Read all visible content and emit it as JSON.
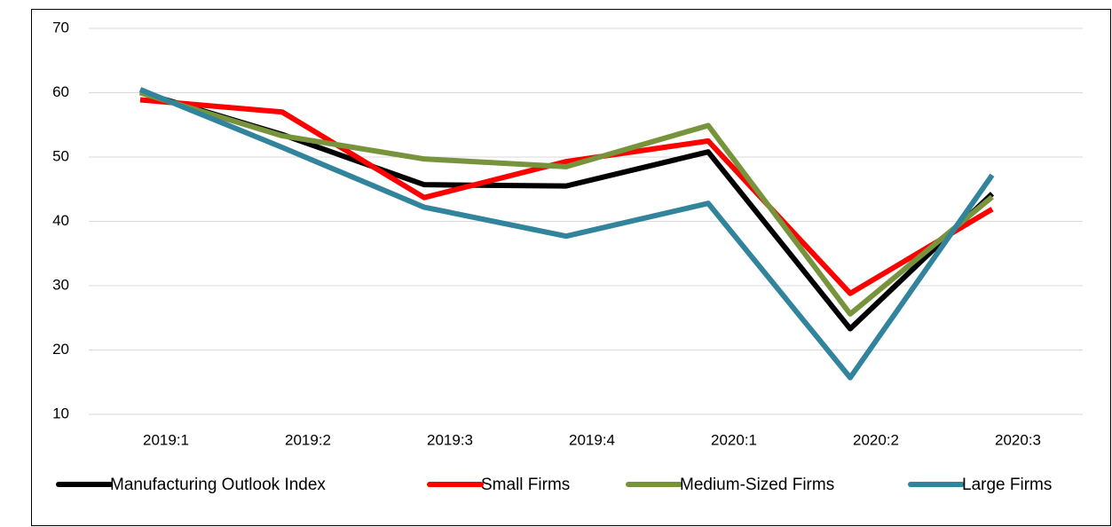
{
  "chart_data": {
    "type": "line",
    "categories": [
      "2019:1",
      "2019:2",
      "2019:3",
      "2019:4",
      "2020:1",
      "2020:2",
      "2020:3"
    ],
    "series": [
      {
        "name": "Manufacturing Outlook Index",
        "color": "#000000",
        "values": [
          60.1,
          53.5,
          45.7,
          45.5,
          50.8,
          23.3,
          44.3
        ]
      },
      {
        "name": "Small Firms",
        "color": "#ff0000",
        "values": [
          58.9,
          57.0,
          43.7,
          49.3,
          52.5,
          28.8,
          41.9
        ]
      },
      {
        "name": "Medium-Sized Firms",
        "color": "#77933c",
        "values": [
          60.0,
          53.3,
          49.7,
          48.5,
          54.9,
          25.6,
          43.8
        ]
      },
      {
        "name": "Large Firms",
        "color": "#31849b",
        "values": [
          60.5,
          51.5,
          42.2,
          37.7,
          42.8,
          15.7,
          47.2
        ]
      }
    ],
    "ylim": [
      10,
      70
    ],
    "yticks": [
      10,
      20,
      30,
      40,
      50,
      60,
      70
    ],
    "grid": true,
    "legend": "bottom"
  }
}
